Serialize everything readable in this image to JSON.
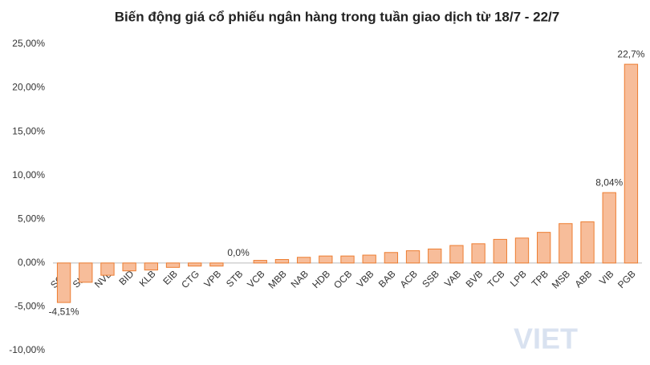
{
  "chart_data": {
    "type": "bar",
    "title": "Biến động giá cổ phiếu ngân hàng trong tuần giao dịch từ 18/7 - 22/7",
    "categories": [
      "SGB",
      "SHB",
      "NVB",
      "BID",
      "KLB",
      "EIB",
      "CTG",
      "VPB",
      "STB",
      "VCB",
      "MBB",
      "NAB",
      "HDB",
      "OCB",
      "VBB",
      "BAB",
      "ACB",
      "SSB",
      "VAB",
      "BVB",
      "TCB",
      "LPB",
      "TPB",
      "MSB",
      "ABB",
      "VIB",
      "PGB"
    ],
    "values": [
      -4.51,
      -2.2,
      -1.4,
      -0.9,
      -0.8,
      -0.5,
      -0.35,
      -0.35,
      0,
      0.3,
      0.4,
      0.65,
      0.8,
      0.8,
      0.9,
      1.2,
      1.4,
      1.6,
      2.0,
      2.2,
      2.7,
      2.85,
      3.5,
      4.5,
      4.7,
      8.04,
      22.7
    ],
    "value_labels": [
      "-4,51%",
      null,
      null,
      null,
      null,
      null,
      null,
      null,
      "0,0%",
      null,
      null,
      null,
      null,
      null,
      null,
      null,
      null,
      null,
      null,
      null,
      null,
      null,
      null,
      null,
      null,
      "8,04%",
      "22,7%"
    ],
    "color": "#f7bd9a",
    "edge_color": "#ed7d31",
    "ylim": [
      -10,
      25
    ],
    "yticks": [
      {
        "value": -10,
        "label": "-10,00%"
      },
      {
        "value": -5,
        "label": "-5,00%"
      },
      {
        "value": 0,
        "label": "0,00%"
      },
      {
        "value": 5,
        "label": "5,00%"
      },
      {
        "value": 10,
        "label": "10,00%"
      },
      {
        "value": 15,
        "label": "15,00%"
      },
      {
        "value": 20,
        "label": "20,00%"
      },
      {
        "value": 25,
        "label": "25,00%"
      }
    ],
    "grid": false,
    "watermark": "VIET"
  }
}
